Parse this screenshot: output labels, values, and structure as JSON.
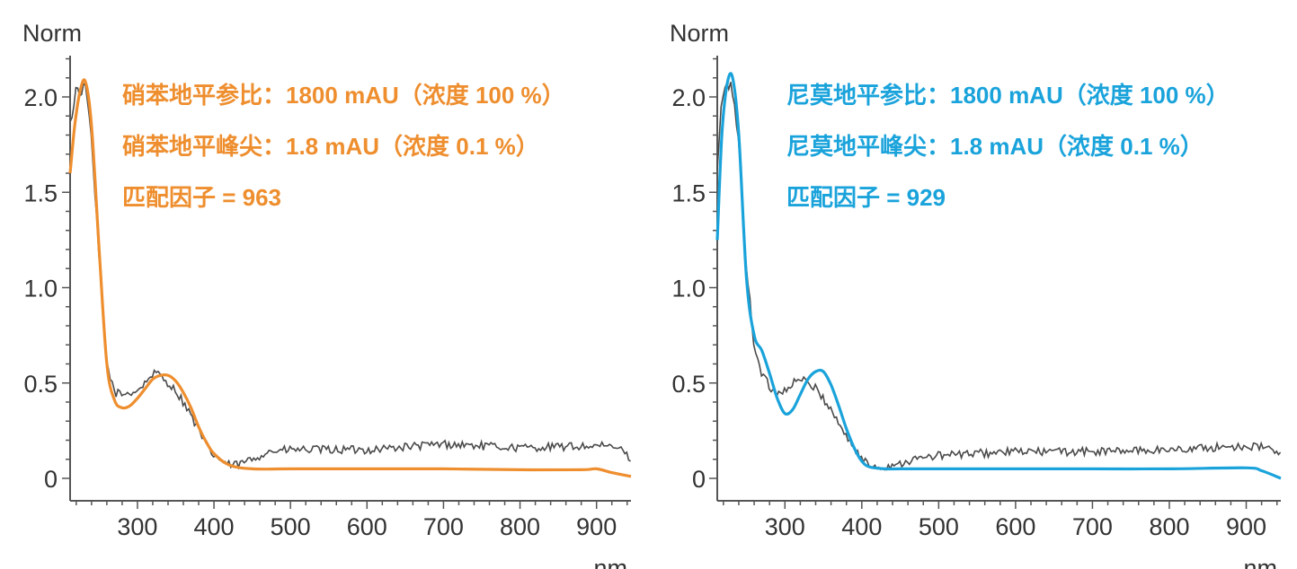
{
  "chart_data": [
    {
      "type": "line",
      "ylabel": "Norm",
      "xlabel": "nm",
      "xlim": [
        212,
        945
      ],
      "ylim": [
        0,
        2.2
      ],
      "x_ticks": [
        300,
        400,
        500,
        600,
        700,
        800,
        900
      ],
      "y_ticks": [
        0,
        0.5,
        1.0,
        1.5,
        2.0
      ],
      "y_tick_labels": [
        "0",
        "0.5",
        "1.0",
        "1.5",
        "2.0"
      ],
      "x_tick_labels": [
        "300",
        "400",
        "500",
        "600",
        "700",
        "800",
        "900"
      ],
      "accent_color": "#EE8E2E",
      "noisy_color": "#4A4A4A",
      "annotations": [
        "硝苯地平参比：1800 mAU（浓度 100 %）",
        "硝苯地平峰尖：1.8 mAU（浓度 0.1 %）",
        "匹配因子 = 963"
      ],
      "series": [
        {
          "style": "smooth",
          "x": [
            212,
            218,
            225,
            232,
            240,
            250,
            260,
            270,
            280,
            290,
            300,
            310,
            320,
            330,
            340,
            350,
            360,
            370,
            380,
            390,
            400,
            420,
            450,
            500,
            600,
            700,
            800,
            880,
            900,
            920,
            945
          ],
          "y": [
            1.6,
            1.85,
            2.03,
            2.08,
            1.85,
            1.2,
            0.6,
            0.41,
            0.37,
            0.38,
            0.42,
            0.47,
            0.52,
            0.54,
            0.54,
            0.51,
            0.45,
            0.37,
            0.27,
            0.19,
            0.13,
            0.07,
            0.05,
            0.05,
            0.05,
            0.05,
            0.045,
            0.045,
            0.05,
            0.03,
            0.01
          ]
        },
        {
          "style": "noisy",
          "x": [
            212,
            216,
            220,
            225,
            230,
            235,
            240,
            250,
            260,
            270,
            280,
            290,
            300,
            310,
            320,
            330,
            340,
            350,
            360,
            370,
            380,
            390,
            400,
            410,
            420,
            430,
            450,
            470,
            500,
            600,
            700,
            800,
            900,
            930,
            945
          ],
          "y": [
            1.85,
            1.95,
            2.05,
            2.02,
            2.06,
            2.0,
            1.75,
            1.15,
            0.6,
            0.45,
            0.44,
            0.45,
            0.46,
            0.5,
            0.55,
            0.54,
            0.5,
            0.46,
            0.4,
            0.33,
            0.25,
            0.17,
            0.12,
            0.09,
            0.07,
            0.07,
            0.1,
            0.14,
            0.15,
            0.15,
            0.18,
            0.16,
            0.17,
            0.16,
            0.1
          ]
        }
      ]
    },
    {
      "type": "line",
      "ylabel": "Norm",
      "xlabel": "nm",
      "xlim": [
        212,
        945
      ],
      "ylim": [
        0,
        2.2
      ],
      "x_ticks": [
        300,
        400,
        500,
        600,
        700,
        800,
        900
      ],
      "y_ticks": [
        0,
        0.5,
        1.0,
        1.5,
        2.0
      ],
      "y_tick_labels": [
        "0",
        "0.5",
        "1.0",
        "1.5",
        "2.0"
      ],
      "x_tick_labels": [
        "300",
        "400",
        "500",
        "600",
        "700",
        "800",
        "900"
      ],
      "accent_color": "#1AA3DB",
      "noisy_color": "#4A4A4A",
      "annotations": [
        "尼莫地平参比：1800 mAU（浓度 100 %）",
        "尼莫地平峰尖：1.8 mAU（浓度 0.1 %）",
        "匹配因子 = 929"
      ],
      "series": [
        {
          "style": "smooth",
          "x": [
            212,
            218,
            225,
            232,
            240,
            250,
            260,
            270,
            280,
            290,
            300,
            310,
            320,
            330,
            340,
            350,
            360,
            370,
            380,
            390,
            400,
            410,
            430,
            450,
            500,
            600,
            700,
            800,
            900,
            920,
            945
          ],
          "y": [
            1.25,
            1.8,
            2.07,
            2.1,
            1.8,
            1.05,
            0.75,
            0.67,
            0.55,
            0.42,
            0.34,
            0.36,
            0.44,
            0.52,
            0.56,
            0.56,
            0.49,
            0.38,
            0.26,
            0.16,
            0.09,
            0.06,
            0.05,
            0.05,
            0.05,
            0.05,
            0.05,
            0.05,
            0.055,
            0.04,
            0.0
          ]
        },
        {
          "style": "noisy",
          "x": [
            212,
            216,
            220,
            225,
            230,
            235,
            240,
            250,
            260,
            270,
            280,
            290,
            300,
            310,
            320,
            330,
            340,
            350,
            360,
            370,
            380,
            390,
            400,
            410,
            420,
            430,
            450,
            470,
            500,
            600,
            700,
            800,
            900,
            930,
            945
          ],
          "y": [
            1.6,
            1.9,
            2.02,
            2.05,
            2.07,
            1.95,
            1.75,
            1.1,
            0.7,
            0.55,
            0.48,
            0.45,
            0.46,
            0.5,
            0.52,
            0.5,
            0.47,
            0.42,
            0.36,
            0.29,
            0.22,
            0.16,
            0.1,
            0.07,
            0.06,
            0.06,
            0.08,
            0.1,
            0.12,
            0.14,
            0.14,
            0.15,
            0.17,
            0.16,
            0.12
          ]
        }
      ]
    }
  ]
}
